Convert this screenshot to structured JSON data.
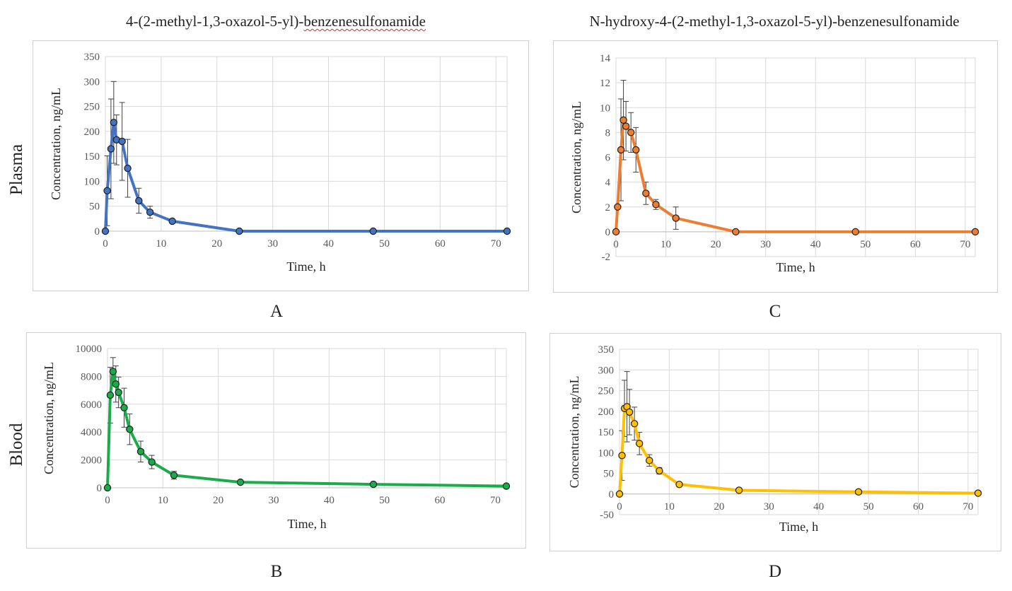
{
  "header": {
    "title_left_prefix": "4-(2-methyl-1,3-oxazol-5-yl)-",
    "title_left_word": "benzenesulfonamide",
    "title_right": "N-hydroxy-4-(2-methyl-1,3-oxazol-5-yl)-benzenesulfonamide"
  },
  "rows": {
    "top": "Plasma",
    "bottom": "Blood"
  },
  "letters": {
    "A": "A",
    "B": "B",
    "C": "C",
    "D": "D"
  },
  "chart_data": [
    {
      "id": "A",
      "type": "line",
      "color": "#4472C4",
      "xlabel": "Time, h",
      "ylabel": "Concentration, ng/mL",
      "xlim": [
        0,
        72
      ],
      "ylim": [
        0,
        350
      ],
      "xticks": [
        0,
        10,
        20,
        30,
        40,
        50,
        60,
        70
      ],
      "yticks": [
        0,
        50,
        100,
        150,
        200,
        250,
        300,
        350
      ],
      "grid": true,
      "x": [
        0,
        0.33,
        1,
        1.5,
        2,
        3,
        4,
        6,
        8,
        12,
        24,
        48,
        72
      ],
      "y": [
        0,
        81,
        165,
        218,
        183,
        180,
        126,
        61,
        38,
        20,
        0,
        0,
        0
      ],
      "err": [
        0,
        70,
        100,
        82,
        50,
        78,
        58,
        25,
        12,
        0,
        0,
        0,
        0
      ]
    },
    {
      "id": "C",
      "type": "line",
      "color": "#ED7D31",
      "xlabel": "Time, h",
      "ylabel": "Concentration, ng/mL",
      "xlim": [
        0,
        72
      ],
      "ylim": [
        -2,
        14
      ],
      "xticks": [
        0,
        10,
        20,
        30,
        40,
        50,
        60,
        70
      ],
      "yticks": [
        -2,
        0,
        2,
        4,
        6,
        8,
        10,
        12,
        14
      ],
      "grid": true,
      "x": [
        0,
        0.33,
        1,
        1.5,
        2,
        3,
        4,
        6,
        8,
        12,
        24,
        48,
        72
      ],
      "y": [
        0,
        2.0,
        6.6,
        9.0,
        8.5,
        8.0,
        6.6,
        3.1,
        2.2,
        1.1,
        0,
        0,
        0
      ],
      "err": [
        0,
        0,
        4.1,
        3.2,
        2.0,
        1.6,
        1.8,
        0.9,
        0.4,
        0.9,
        0,
        0,
        0
      ]
    },
    {
      "id": "B",
      "type": "line",
      "color": "#1AAB4B",
      "xlabel": "Time, h",
      "ylabel": "Concentration, ng/mL",
      "xlim": [
        0,
        72
      ],
      "ylim": [
        0,
        10000
      ],
      "xticks": [
        0,
        10,
        20,
        30,
        40,
        50,
        60,
        70
      ],
      "yticks": [
        0,
        2000,
        4000,
        6000,
        8000,
        10000
      ],
      "grid": true,
      "x": [
        0,
        0.5,
        1,
        1.5,
        2,
        3,
        4,
        6,
        8,
        12,
        24,
        48,
        72
      ],
      "y": [
        0,
        6650,
        8350,
        7450,
        6850,
        5750,
        4200,
        2600,
        1850,
        900,
        400,
        250,
        120
      ],
      "err": [
        0,
        2000,
        1000,
        1300,
        1100,
        1400,
        1100,
        750,
        480,
        280,
        0,
        0,
        0
      ]
    },
    {
      "id": "D",
      "type": "line",
      "color": "#FFC000",
      "xlabel": "Time, h",
      "ylabel": "Concentration, ng/mL",
      "xlim": [
        0,
        72
      ],
      "ylim": [
        -50,
        350
      ],
      "xticks": [
        0,
        10,
        20,
        30,
        40,
        50,
        60,
        70
      ],
      "yticks": [
        -50,
        0,
        50,
        100,
        150,
        200,
        250,
        300,
        350
      ],
      "grid": true,
      "x": [
        0,
        0.5,
        1,
        1.5,
        2,
        3,
        4,
        6,
        8,
        12,
        24,
        48,
        72
      ],
      "y": [
        0,
        93,
        207,
        211,
        198,
        170,
        122,
        81,
        56,
        23,
        9,
        5,
        2
      ],
      "err": [
        0,
        60,
        68,
        85,
        55,
        40,
        27,
        14,
        8,
        5,
        0,
        0,
        0
      ]
    }
  ]
}
